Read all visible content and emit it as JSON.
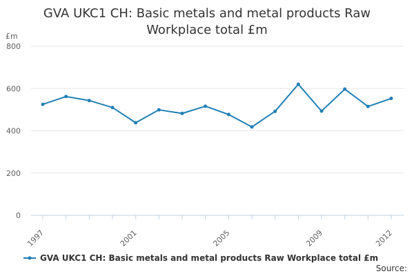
{
  "chart_data": {
    "type": "line",
    "title": "GVA UKC1 CH: Basic metals and metal products Raw Workplace total £m",
    "ylabel": "£m",
    "xlabel": "",
    "x": [
      1997,
      1998,
      1999,
      2000,
      2001,
      2002,
      2003,
      2004,
      2005,
      2006,
      2007,
      2008,
      2009,
      2010,
      2011,
      2012
    ],
    "x_tick_labels": [
      "1997",
      "2001",
      "2005",
      "2009",
      "2012"
    ],
    "y_tick_labels": [
      "0",
      "200",
      "400",
      "600",
      "800"
    ],
    "ylim": [
      0,
      800
    ],
    "series": [
      {
        "name": "GVA UKC1 CH: Basic metals and metal products Raw Workplace total £m",
        "values": [
          525,
          562,
          543,
          510,
          438,
          499,
          482,
          516,
          477,
          418,
          492,
          620,
          493,
          597,
          515,
          553
        ],
        "color": "#1f7fb4"
      }
    ],
    "grid": true,
    "legend_position": "bottom",
    "source_label": "Source:"
  }
}
